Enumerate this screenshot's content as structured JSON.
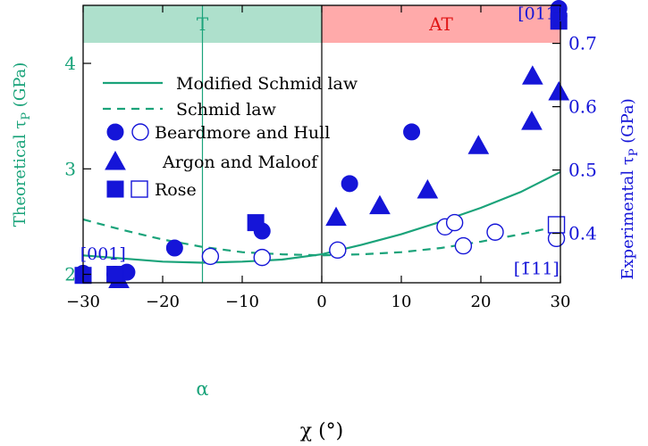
{
  "chart_data": {
    "type": "scatter",
    "title": "",
    "xlabel": "χ (°)",
    "ylabel_left": "Theoretical τ_P (GPa)",
    "ylabel_left_parts": {
      "pre": "Theoretical τ",
      "sub": "P",
      "post": " (GPa)"
    },
    "ylabel_right": "Experimental τ_P (GPa)",
    "ylabel_right_parts": {
      "pre": "Experimental τ",
      "sub": "P",
      "post": " (GPa)"
    },
    "xlim": [
      -30,
      30
    ],
    "ylim_left": [
      1.92,
      4.55
    ],
    "ylim_right": [
      0.322,
      0.76
    ],
    "xticks": [
      -30,
      -20,
      -10,
      0,
      10,
      20,
      30
    ],
    "xtick_labels": [
      "−30",
      "−20",
      "−10",
      "0",
      "10",
      "20",
      "30"
    ],
    "yticks_left": [
      2,
      3,
      4
    ],
    "yticks_right": [
      0.4,
      0.5,
      0.6,
      0.7
    ],
    "ytick_labels_right": [
      "0.4",
      "0.5",
      "0.6",
      "0.7"
    ],
    "regions": [
      {
        "label": "T",
        "x_from": -30,
        "x_to": 0,
        "color": "#aee0cc"
      },
      {
        "label": "AT",
        "x_from": 0,
        "x_to": 30,
        "color": "#ffaaaa"
      }
    ],
    "colors": {
      "theory": "#1aa37a",
      "experiment": "#1515d8",
      "region_t_text": "#1aa37a",
      "region_at_text": "#e01515"
    },
    "annotations": [
      {
        "text": "[011]",
        "x": 27.5,
        "y": 4.48,
        "color": "#1515d8"
      },
      {
        "text": "[001]",
        "x": -27.5,
        "y": 2.2,
        "color": "#1515d8"
      },
      {
        "text": "[1̄11]",
        "x": 27.0,
        "y": 2.06,
        "color": "#1515d8"
      },
      {
        "text": "α",
        "x": -15,
        "y": 1.87,
        "color": "#1aa37a"
      }
    ],
    "vlines": [
      {
        "x": -15,
        "color": "#1aa37a"
      },
      {
        "x": 0,
        "color": "#000000"
      }
    ],
    "legend": {
      "placement": "upper-left",
      "entries": [
        {
          "label": "Modified Schmid law",
          "kind": "solid-line"
        },
        {
          "label": "Schmid law",
          "kind": "dashed-line"
        },
        {
          "label": "Beardmore and Hull",
          "kind": "circle-filled-open"
        },
        {
          "label": "Argon and Maloof",
          "kind": "triangle"
        },
        {
          "label": "Rose",
          "kind": "square-filled-open"
        }
      ]
    },
    "series": [
      {
        "name": "Modified Schmid law",
        "axis": "left",
        "style": "solid",
        "x": [
          -30,
          -25,
          -20,
          -15,
          -10,
          -5,
          0,
          5,
          10,
          15,
          20,
          25,
          30
        ],
        "y": [
          2.18,
          2.15,
          2.12,
          2.11,
          2.12,
          2.14,
          2.19,
          2.28,
          2.38,
          2.5,
          2.63,
          2.78,
          2.97
        ]
      },
      {
        "name": "Schmid law",
        "axis": "left",
        "style": "dashed",
        "x": [
          -30,
          -25,
          -20,
          -15,
          -10,
          -5,
          0,
          5,
          10,
          15,
          20,
          25,
          30
        ],
        "y": [
          2.52,
          2.42,
          2.33,
          2.26,
          2.21,
          2.19,
          2.18,
          2.19,
          2.21,
          2.25,
          2.31,
          2.38,
          2.46
        ]
      },
      {
        "name": "Beardmore and Hull",
        "axis": "left",
        "marker": "circle",
        "fill": "filled",
        "x": [
          -30,
          -26,
          -24.5,
          -18.5,
          -7.5,
          3.5,
          11.3,
          29.8,
          29.8
        ],
        "y": [
          2.01,
          2.0,
          2.02,
          2.25,
          2.41,
          2.86,
          3.35,
          4.52,
          4.45
        ]
      },
      {
        "name": "Beardmore and Hull",
        "axis": "left",
        "marker": "circle",
        "fill": "open",
        "x": [
          -14,
          -7.5,
          2,
          15.5,
          16.7,
          17.8,
          21.8,
          29.5
        ],
        "y": [
          2.17,
          2.16,
          2.23,
          2.45,
          2.49,
          2.27,
          2.4,
          2.34
        ]
      },
      {
        "name": "Argon and Maloof",
        "axis": "left",
        "marker": "triangle",
        "fill": "filled",
        "x": [
          -25.5,
          1.8,
          7.3,
          13.3,
          19.7,
          26.4,
          26.5,
          29.8
        ],
        "y": [
          1.95,
          2.54,
          2.65,
          2.8,
          3.22,
          3.45,
          3.88,
          3.73
        ]
      },
      {
        "name": "Rose",
        "axis": "left",
        "marker": "square",
        "fill": "filled",
        "x": [
          -30,
          -26,
          -8.3,
          29.8
        ],
        "y": [
          1.99,
          2.0,
          2.49,
          4.4
        ]
      },
      {
        "name": "Rose",
        "axis": "left",
        "marker": "square",
        "fill": "open",
        "x": [
          29.5
        ],
        "y": [
          2.47
        ]
      }
    ]
  }
}
